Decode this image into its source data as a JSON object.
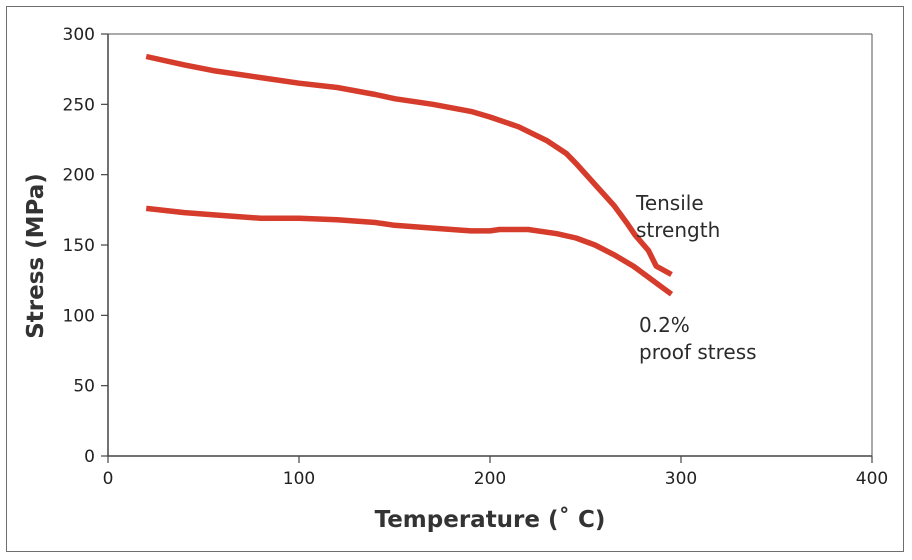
{
  "chart_data": {
    "type": "line",
    "title": "",
    "xlabel": "Temperature (˚ C)",
    "ylabel": "Stress (MPa)",
    "xlim": [
      0,
      400
    ],
    "ylim": [
      0,
      300
    ],
    "x_ticks": [
      "0",
      "100",
      "200",
      "300",
      "400"
    ],
    "y_ticks": [
      "0",
      "50",
      "100",
      "150",
      "200",
      "250",
      "300"
    ],
    "x_tick_values": [
      0,
      100,
      200,
      300,
      400
    ],
    "y_tick_values": [
      0,
      50,
      100,
      150,
      200,
      250,
      300
    ],
    "grid": false,
    "colors": {
      "series": "#d63c2b",
      "frame": "#6e6e6e",
      "axis": "#444444"
    },
    "series": [
      {
        "name": "Tensile strength",
        "label_lines": [
          "Tensile",
          "strength"
        ],
        "points": [
          [
            20,
            284
          ],
          [
            40,
            278
          ],
          [
            55,
            274
          ],
          [
            60,
            273
          ],
          [
            80,
            269
          ],
          [
            100,
            265
          ],
          [
            120,
            262
          ],
          [
            140,
            257
          ],
          [
            150,
            254
          ],
          [
            170,
            250
          ],
          [
            190,
            245
          ],
          [
            200,
            241
          ],
          [
            215,
            234
          ],
          [
            230,
            224
          ],
          [
            240,
            215
          ],
          [
            245,
            208
          ],
          [
            255,
            193
          ],
          [
            265,
            178
          ],
          [
            272,
            165
          ],
          [
            276,
            157
          ],
          [
            283,
            146
          ],
          [
            287,
            135
          ],
          [
            295,
            129
          ]
        ]
      },
      {
        "name": "0.2% proof stress",
        "label_lines": [
          "0.2%",
          "proof stress"
        ],
        "points": [
          [
            20,
            176
          ],
          [
            40,
            173
          ],
          [
            60,
            171
          ],
          [
            80,
            169
          ],
          [
            100,
            169
          ],
          [
            120,
            168
          ],
          [
            140,
            166
          ],
          [
            150,
            164
          ],
          [
            170,
            162
          ],
          [
            190,
            160
          ],
          [
            200,
            160
          ],
          [
            205,
            161
          ],
          [
            220,
            161
          ],
          [
            235,
            158
          ],
          [
            245,
            155
          ],
          [
            255,
            150
          ],
          [
            265,
            143
          ],
          [
            275,
            135
          ],
          [
            282,
            128
          ],
          [
            290,
            120
          ],
          [
            295,
            115
          ]
        ]
      }
    ]
  }
}
